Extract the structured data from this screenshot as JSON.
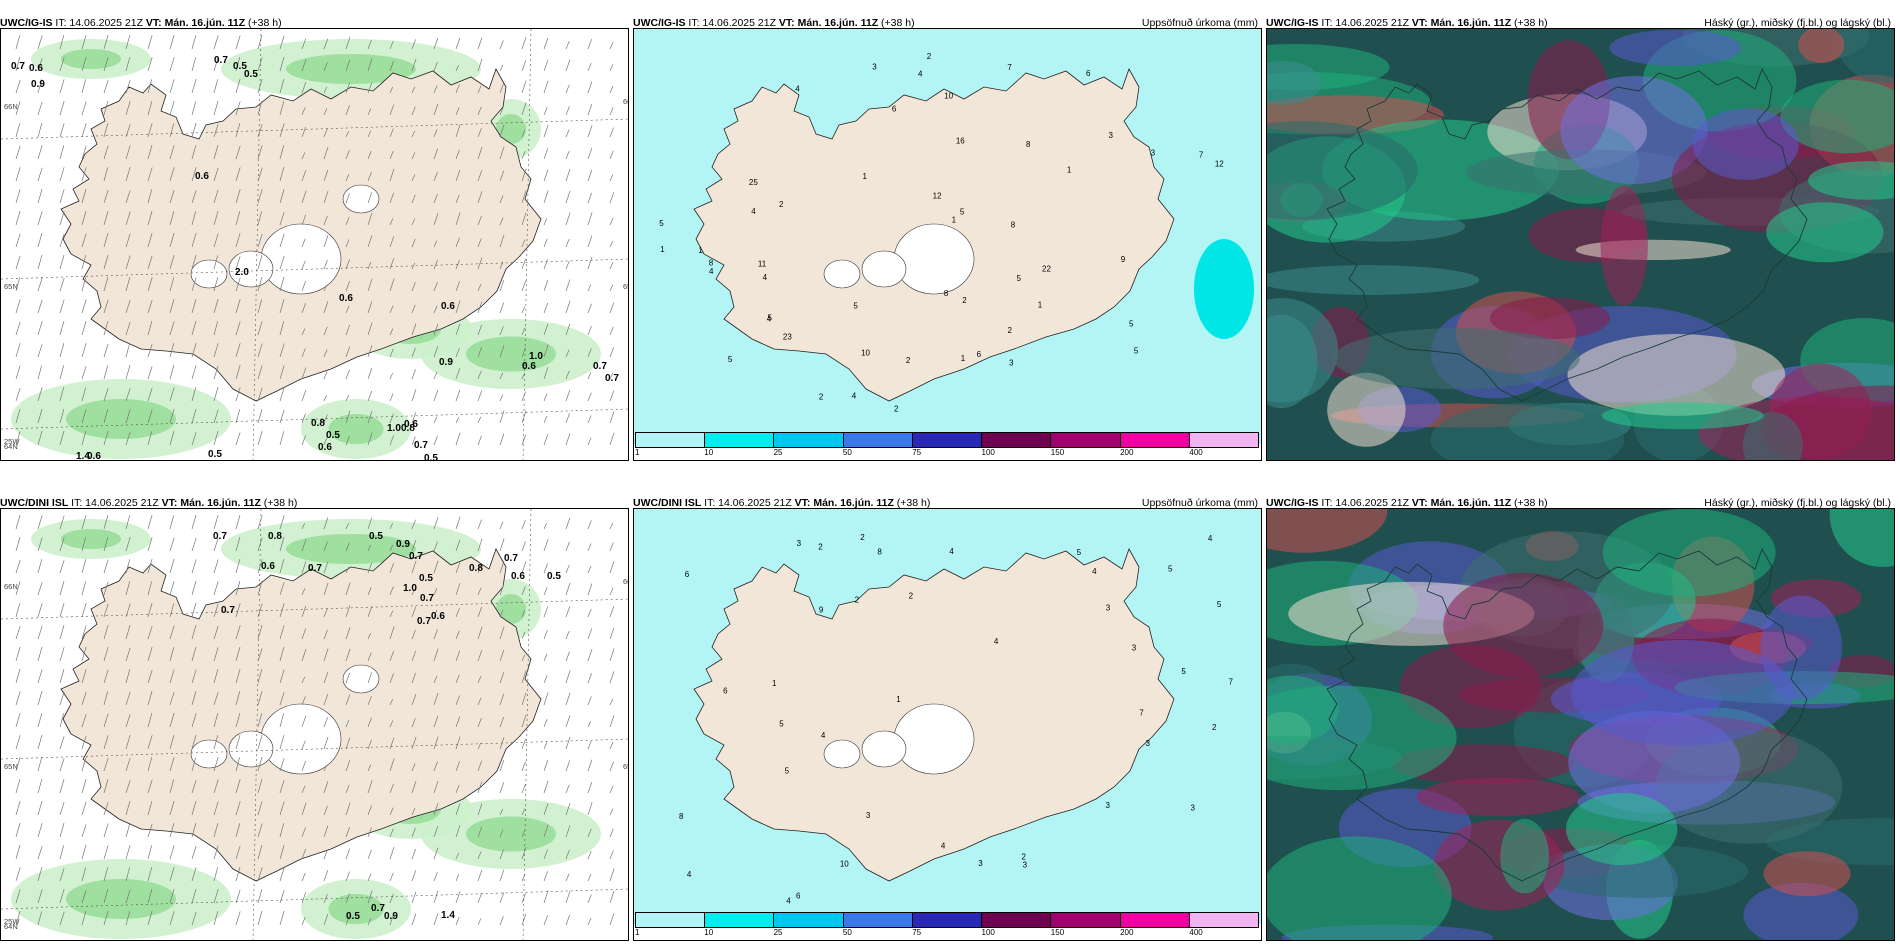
{
  "panels": [
    {
      "model": "UWC/IG-IS",
      "it": "IT: 14.06.2025 21Z",
      "vt_label": "VT:",
      "vt": "Mán. 16.jún. 11Z",
      "lead": "(+38 h)",
      "right": "",
      "type": "wind",
      "values": [
        "0.7",
        "0.6",
        "0.9",
        "0.7",
        "0.5",
        "0.5",
        "0.6",
        "2.0",
        "0.6",
        "0.9",
        "1.0",
        "0.7",
        "0.7",
        "0.6",
        "0.8",
        "0.5",
        "0.6",
        "1.0",
        "0.8",
        "0.6",
        "0.7",
        "0.5",
        "1.4",
        "0.6",
        "0.5",
        "0.6"
      ],
      "axis": [
        "66N",
        "65N",
        "64N",
        "20W",
        "15W",
        "66N",
        "65N",
        "64N",
        "25W"
      ]
    },
    {
      "model": "UWC/IG-IS",
      "it": "IT: 14.06.2025 21Z",
      "vt_label": "VT:",
      "vt": "Mán. 16.jún. 11Z",
      "lead": "(+38 h)",
      "right": "Uppsöfnuð úrkoma (mm)",
      "type": "precip",
      "values": [
        "5",
        "6",
        "4",
        "3",
        "2",
        "2",
        "4",
        "5",
        "3",
        "1",
        "1",
        "2",
        "1",
        "1",
        "2",
        "3",
        "5",
        "5",
        "4",
        "4",
        "3",
        "4",
        "6",
        "5",
        "12",
        "10",
        "8",
        "7",
        "16",
        "22",
        "25",
        "23",
        "6",
        "8",
        "5",
        "4",
        "7",
        "8",
        "8",
        "9",
        "12",
        "10",
        "2",
        "11",
        "1",
        "4",
        "5",
        "1",
        "5",
        "2",
        "1",
        "2"
      ],
      "legend_ticks": [
        "1",
        "10",
        "25",
        "50",
        "75",
        "100",
        "150",
        "200",
        "400"
      ]
    },
    {
      "model": "UWC/IG-IS",
      "it": "IT: 14.06.2025 21Z",
      "vt_label": "VT:",
      "vt": "Mán. 16.jún. 11Z",
      "lead": "(+38 h)",
      "right": "Háský (gr.), miðský (fj.bl.) og lágský (bl.)",
      "type": "cloud"
    },
    {
      "model": "UWC/DINI ISL",
      "it": "IT: 14.06.2025 21Z",
      "vt_label": "VT:",
      "vt": "Mán. 16.jún. 11Z",
      "lead": "(+38 h)",
      "right": "",
      "type": "wind",
      "values": [
        "0.7",
        "0.8",
        "0.6",
        "0.7",
        "0.5",
        "0.9",
        "0.7",
        "0.5",
        "1.0",
        "0.7",
        "0.8",
        "0.7",
        "0.6",
        "0.5",
        "0.6",
        "0.7",
        "0.7",
        "0.5",
        "0.7",
        "0.9",
        "1.4"
      ],
      "axis": [
        "66N",
        "65N",
        "64N",
        "20W",
        "15W",
        "66N",
        "65N",
        "64N",
        "25W"
      ]
    },
    {
      "model": "UWC/DINI ISL",
      "it": "IT: 14.06.2025 21Z",
      "vt_label": "VT:",
      "vt": "Mán. 16.jún. 11Z",
      "lead": "(+38 h)",
      "right": "Uppsöfnuð úrkoma (mm)",
      "type": "precip",
      "values": [
        "3",
        "5",
        "6",
        "7",
        "4",
        "4",
        "3",
        "2",
        "4",
        "5",
        "5",
        "4",
        "2",
        "3",
        "4",
        "5",
        "6",
        "8",
        "5",
        "3",
        "3",
        "2",
        "1",
        "2",
        "3",
        "4",
        "2",
        "3",
        "5",
        "6",
        "7",
        "8",
        "9",
        "10",
        "2",
        "3",
        "4",
        "1",
        "3",
        "4"
      ],
      "legend_ticks": [
        "1",
        "10",
        "25",
        "50",
        "75",
        "100",
        "150",
        "200",
        "400"
      ]
    },
    {
      "model": "UWC/IG-IS",
      "it": "IT: 14.06.2025 21Z",
      "vt_label": "VT:",
      "vt": "Mán. 16.jún. 11Z",
      "lead": "(+38 h)",
      "right": "Háský (gr.), miðský (fj.bl.) og lágský (bl.)",
      "type": "cloud"
    }
  ],
  "colors": {
    "land": "#f2e6d9",
    "green_light": "#ccefcc",
    "green_mid": "#99dd99",
    "green_dark": "#449944",
    "precip_light": "#b3f5f5",
    "precip_cyan": "#00e5e5",
    "legend": [
      "#b3f5f5",
      "#00eeee",
      "#00c8ee",
      "#3c78e8",
      "#2828b4",
      "#6e0050",
      "#a0006e",
      "#f000a0",
      "#f0b4f0"
    ]
  }
}
